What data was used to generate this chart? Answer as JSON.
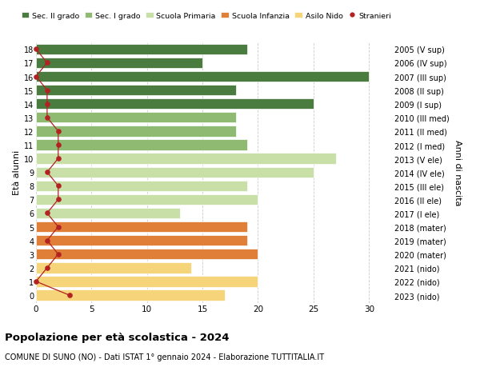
{
  "ages": [
    18,
    17,
    16,
    15,
    14,
    13,
    12,
    11,
    10,
    9,
    8,
    7,
    6,
    5,
    4,
    3,
    2,
    1,
    0
  ],
  "bar_values": [
    19,
    15,
    30,
    18,
    25,
    18,
    18,
    19,
    27,
    25,
    19,
    20,
    13,
    19,
    19,
    20,
    14,
    20,
    17
  ],
  "bar_colors": [
    "#4a7c3f",
    "#4a7c3f",
    "#4a7c3f",
    "#4a7c3f",
    "#4a7c3f",
    "#8fba72",
    "#8fba72",
    "#8fba72",
    "#c8dfa8",
    "#c8dfa8",
    "#c8dfa8",
    "#c8dfa8",
    "#c8dfa8",
    "#e07f38",
    "#e07f38",
    "#e07f38",
    "#f5d47a",
    "#f5d47a",
    "#f5d47a"
  ],
  "stranieri_values": [
    0,
    1,
    0,
    1,
    1,
    1,
    2,
    2,
    2,
    1,
    2,
    2,
    1,
    2,
    1,
    2,
    1,
    0,
    3
  ],
  "right_labels": [
    "2005 (V sup)",
    "2006 (IV sup)",
    "2007 (III sup)",
    "2008 (II sup)",
    "2009 (I sup)",
    "2010 (III med)",
    "2011 (II med)",
    "2012 (I med)",
    "2013 (V ele)",
    "2014 (IV ele)",
    "2015 (III ele)",
    "2016 (II ele)",
    "2017 (I ele)",
    "2018 (mater)",
    "2019 (mater)",
    "2020 (mater)",
    "2021 (nido)",
    "2022 (nido)",
    "2023 (nido)"
  ],
  "ylabel_left": "Età alunni",
  "ylabel_right": "Anni di nascita",
  "xlim": [
    0,
    32
  ],
  "xticks": [
    0,
    5,
    10,
    15,
    20,
    25,
    30
  ],
  "title": "Popolazione per età scolastica - 2024",
  "subtitle": "COMUNE DI SUNO (NO) - Dati ISTAT 1° gennaio 2024 - Elaborazione TUTTITALIA.IT",
  "legend_labels": [
    "Sec. II grado",
    "Sec. I grado",
    "Scuola Primaria",
    "Scuola Infanzia",
    "Asilo Nido",
    "Stranieri"
  ],
  "legend_colors": [
    "#4a7c3f",
    "#8fba72",
    "#c8dfa8",
    "#e07f38",
    "#f5d47a",
    "#b22222"
  ],
  "stranieri_color": "#b22222",
  "bg_color": "#ffffff",
  "grid_color": "#cccccc",
  "bar_height": 0.78
}
